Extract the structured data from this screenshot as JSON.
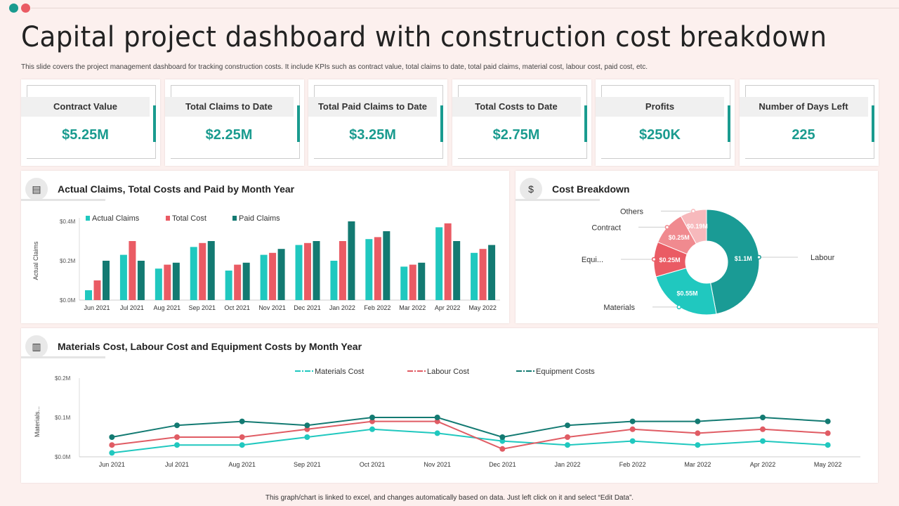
{
  "title": "Capital project dashboard with construction cost breakdown",
  "subtitle": "This slide covers the project management dashboard for tracking construction costs. It include KPIs  such as contract value, total claims to date, total paid claims, material cost, labour cost, paid cost, etc.",
  "colors": {
    "accent": "#1a9b8f",
    "teal_light": "#20c8bf",
    "red": "#ea5b64",
    "dark_teal": "#137a72",
    "bg": "#fcf0ee"
  },
  "kpis": [
    {
      "label": "Contract Value",
      "value": "$5.25M"
    },
    {
      "label": "Total Claims to Date",
      "value": "$2.25M"
    },
    {
      "label": "Total Paid Claims to Date",
      "value": "$3.25M"
    },
    {
      "label": "Total Costs to Date",
      "value": "$2.75M"
    },
    {
      "label": "Profits",
      "value": "$250K"
    },
    {
      "label": "Number of Days Left",
      "value": "225"
    }
  ],
  "footer": "This graph/chart is linked to excel, and changes automatically based on data. Just left click on it and select “Edit Data”.",
  "chart_data": [
    {
      "type": "bar",
      "title": "Actual Claims, Total Costs and Paid by Month Year",
      "icon": "report-icon",
      "ylabel": "Actual Claims",
      "ylim": [
        0,
        0.4
      ],
      "yticks": [
        "$0.0M",
        "$0.2M",
        "$0.4M"
      ],
      "legend": "top-left",
      "categories": [
        "Jun 2021",
        "Jul 2021",
        "Aug 2021",
        "Sep 2021",
        "Oct 2021",
        "Nov 2021",
        "Dec 2021",
        "Jan 2022",
        "Feb 2022",
        "Mar 2022",
        "Apr 2022",
        "May 2022"
      ],
      "series": [
        {
          "name": "Actual Claims",
          "color": "#20c8bf",
          "values": [
            0.05,
            0.23,
            0.16,
            0.27,
            0.15,
            0.23,
            0.28,
            0.2,
            0.31,
            0.17,
            0.37,
            0.24
          ]
        },
        {
          "name": "Total Cost",
          "color": "#ea5b64",
          "values": [
            0.1,
            0.3,
            0.18,
            0.29,
            0.18,
            0.24,
            0.29,
            0.3,
            0.32,
            0.18,
            0.39,
            0.26
          ]
        },
        {
          "name": "Paid Claims",
          "color": "#137a72",
          "values": [
            0.2,
            0.2,
            0.19,
            0.3,
            0.19,
            0.26,
            0.3,
            0.4,
            0.35,
            0.19,
            0.3,
            0.28
          ]
        }
      ]
    },
    {
      "type": "pie",
      "title": "Cost Breakdown",
      "icon": "money-bag-icon",
      "slices": [
        {
          "name": "Labour",
          "value": 1.1,
          "label": "$1.1M",
          "color": "#1a9b95"
        },
        {
          "name": "Materials",
          "value": 0.55,
          "label": "$0.55M",
          "color": "#20c8bf"
        },
        {
          "name": "Equi...",
          "value": 0.25,
          "label": "$0.25M",
          "color": "#ea5b64"
        },
        {
          "name": "Contract",
          "value": 0.25,
          "label": "$0.25M",
          "color": "#f08a8f"
        },
        {
          "name": "Others",
          "value": 0.19,
          "label": "$0.19M",
          "color": "#f7b9bc"
        }
      ]
    },
    {
      "type": "line",
      "title": "Materials Cost, Labour Cost and Equipment Costs by Month Year",
      "icon": "bar-chart-icon",
      "ylabel": "Materials...",
      "ylim": [
        0,
        0.2
      ],
      "yticks": [
        "$0.0M",
        "$0.1M",
        "$0.2M"
      ],
      "legend": "top-center",
      "categories": [
        "Jun 2021",
        "Jul 2021",
        "Aug 2021",
        "Sep 2021",
        "Oct 2021",
        "Nov 2021",
        "Dec 2021",
        "Jan 2022",
        "Feb 2022",
        "Mar 2022",
        "Apr 2022",
        "May 2022"
      ],
      "series": [
        {
          "name": "Materials Cost",
          "color": "#20c8bf",
          "values": [
            0.01,
            0.03,
            0.03,
            0.05,
            0.07,
            0.06,
            0.04,
            0.03,
            0.04,
            0.03,
            0.04,
            0.03
          ]
        },
        {
          "name": "Labour Cost",
          "color": "#e05c64",
          "values": [
            0.03,
            0.05,
            0.05,
            0.07,
            0.09,
            0.09,
            0.02,
            0.05,
            0.07,
            0.06,
            0.07,
            0.06
          ]
        },
        {
          "name": "Equipment Costs",
          "color": "#137a72",
          "values": [
            0.05,
            0.08,
            0.09,
            0.08,
            0.1,
            0.1,
            0.05,
            0.08,
            0.09,
            0.09,
            0.1,
            0.09
          ]
        }
      ]
    }
  ]
}
